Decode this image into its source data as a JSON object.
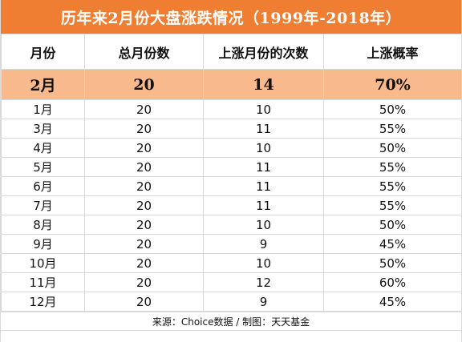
{
  "title": "历年来2月份大盘涨跌情况（1999年-2018年）",
  "headers": [
    "月份",
    "总月份数",
    "上涨月份的次数",
    "上涨概率"
  ],
  "highlight_row": {
    "month": "2月",
    "total": "20",
    "up_count": "14",
    "probability": "70%"
  },
  "rows": [
    {
      "month": "1月",
      "total": "20",
      "up_count": "10",
      "probability": "50%"
    },
    {
      "month": "3月",
      "total": "20",
      "up_count": "11",
      "probability": "55%"
    },
    {
      "month": "4月",
      "total": "20",
      "up_count": "10",
      "probability": "50%"
    },
    {
      "month": "5月",
      "total": "20",
      "up_count": "11",
      "probability": "55%"
    },
    {
      "month": "6月",
      "total": "20",
      "up_count": "11",
      "probability": "55%"
    },
    {
      "month": "7月",
      "total": "20",
      "up_count": "11",
      "probability": "55%"
    },
    {
      "month": "8月",
      "total": "20",
      "up_count": "10",
      "probability": "50%"
    },
    {
      "month": "9月",
      "total": "20",
      "up_count": "9",
      "probability": "45%"
    },
    {
      "month": "10月",
      "total": "20",
      "up_count": "10",
      "probability": "50%"
    },
    {
      "month": "11月",
      "total": "20",
      "up_count": "12",
      "probability": "60%"
    },
    {
      "month": "12月",
      "total": "20",
      "up_count": "9",
      "probability": "45%"
    }
  ],
  "footer": "来源：Choice数据 / 制图：天天基金",
  "colors": {
    "title_bg": "#f07e32",
    "highlight_bg": "#f8b98c",
    "grid": "#d9d9d9"
  }
}
